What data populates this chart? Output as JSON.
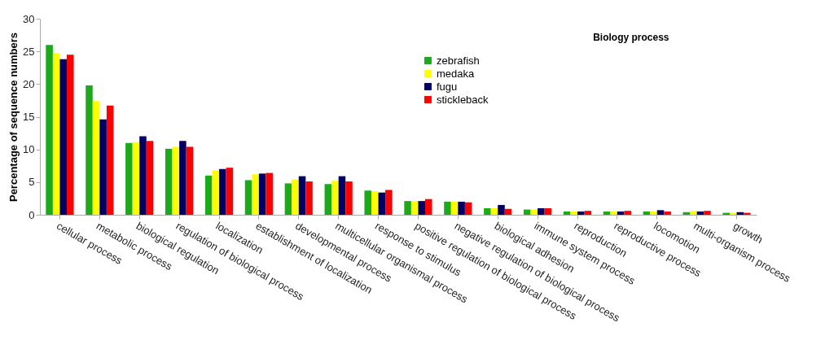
{
  "chart_data": {
    "type": "bar",
    "title": "Biology process",
    "ylabel": "Percentage of sequence numbers",
    "categories": [
      "cellular process",
      "metabolic process",
      "biological regulation",
      "regulation of biological process",
      "localization",
      "establishment of localization",
      "developmental process",
      "multicellular organismal process",
      "response to stimulus",
      "positive regulation of biological process",
      "negative regulation of biological process",
      "biological adhesion",
      "immune system process",
      "reproduction",
      "reproductive process",
      "locomotion",
      "multi-organism process",
      "growth"
    ],
    "series": [
      {
        "name": "zebrafish",
        "color": "#1aaa1a",
        "values": [
          26,
          19.8,
          11.0,
          10.1,
          6.0,
          5.3,
          4.8,
          4.7,
          3.7,
          2.1,
          2.0,
          1.0,
          0.8,
          0.5,
          0.5,
          0.5,
          0.4,
          0.3
        ]
      },
      {
        "name": "medaka",
        "color": "#ffff00",
        "values": [
          24.7,
          17.4,
          11.1,
          10.4,
          6.8,
          6.2,
          5.4,
          5.2,
          3.6,
          2.1,
          2.0,
          1.0,
          0.8,
          0.5,
          0.5,
          0.5,
          0.6,
          0.3
        ]
      },
      {
        "name": "fugu",
        "color": "#000066",
        "values": [
          23.8,
          14.6,
          12.0,
          11.3,
          7.0,
          6.3,
          5.9,
          5.9,
          3.4,
          2.1,
          2.0,
          1.5,
          1.0,
          0.5,
          0.5,
          0.7,
          0.5,
          0.4
        ]
      },
      {
        "name": "stickleback",
        "color": "#ff0000",
        "values": [
          24.5,
          16.7,
          11.3,
          10.4,
          7.2,
          6.4,
          5.1,
          5.1,
          3.8,
          2.4,
          1.9,
          0.9,
          1.0,
          0.6,
          0.6,
          0.5,
          0.6,
          0.3
        ]
      }
    ],
    "ylim": [
      0,
      30
    ],
    "yticks": [
      0,
      5,
      10,
      15,
      20,
      25,
      30
    ],
    "grid": false,
    "legend": "top"
  }
}
